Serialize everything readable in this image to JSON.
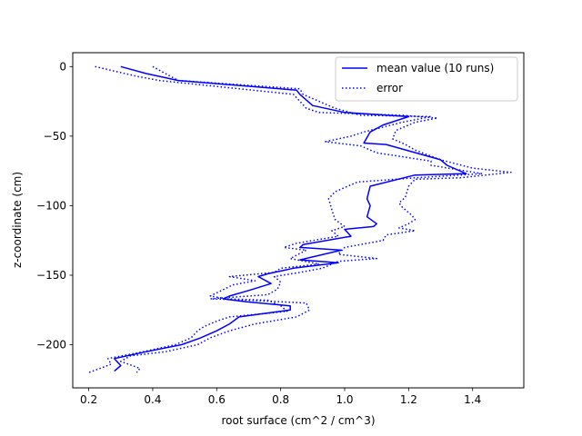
{
  "chart_data": {
    "type": "line",
    "xlabel": "root surface (cm^2 / cm^3)",
    "ylabel": "z-coordinate (cm)",
    "xlim": [
      0.15,
      1.56
    ],
    "ylim": [
      -231,
      10
    ],
    "xticks": [
      0.2,
      0.4,
      0.6,
      0.8,
      1.0,
      1.2,
      1.4
    ],
    "xtick_labels": [
      "0.2",
      "0.4",
      "0.6",
      "0.8",
      "1.0",
      "1.2",
      "1.4"
    ],
    "yticks": [
      0,
      -50,
      -100,
      -150,
      -200
    ],
    "ytick_labels": [
      "0",
      "−50",
      "−100",
      "−150",
      "−200"
    ],
    "grid": false,
    "legend_position": "top-right",
    "series": [
      {
        "name": "mean value (10 runs)",
        "style": "solid",
        "color": "#0000ff",
        "points": [
          [
            0.3,
            0
          ],
          [
            0.38,
            -5
          ],
          [
            0.48,
            -10
          ],
          [
            0.85,
            -17
          ],
          [
            0.86,
            -20
          ],
          [
            0.9,
            -28
          ],
          [
            1.0,
            -33
          ],
          [
            1.2,
            -36
          ],
          [
            1.12,
            -42
          ],
          [
            1.08,
            -47
          ],
          [
            1.06,
            -55
          ],
          [
            1.13,
            -56
          ],
          [
            1.3,
            -67
          ],
          [
            1.32,
            -71
          ],
          [
            1.38,
            -77
          ],
          [
            1.22,
            -78
          ],
          [
            1.08,
            -86
          ],
          [
            1.07,
            -95
          ],
          [
            1.08,
            -100
          ],
          [
            1.07,
            -108
          ],
          [
            1.1,
            -113
          ],
          [
            1.09,
            -115
          ],
          [
            1.0,
            -117
          ],
          [
            1.02,
            -122
          ],
          [
            0.87,
            -128
          ],
          [
            0.86,
            -130
          ],
          [
            0.99,
            -132
          ],
          [
            0.86,
            -139
          ],
          [
            0.98,
            -141
          ],
          [
            0.84,
            -145
          ],
          [
            0.8,
            -147
          ],
          [
            0.76,
            -149
          ],
          [
            0.73,
            -151
          ],
          [
            0.77,
            -156
          ],
          [
            0.7,
            -161
          ],
          [
            0.64,
            -165
          ],
          [
            0.62,
            -167
          ],
          [
            0.69,
            -169
          ],
          [
            0.83,
            -172
          ],
          [
            0.83,
            -175
          ],
          [
            0.67,
            -180
          ],
          [
            0.64,
            -185
          ],
          [
            0.6,
            -190
          ],
          [
            0.55,
            -195
          ],
          [
            0.49,
            -200
          ],
          [
            0.38,
            -205
          ],
          [
            0.28,
            -210
          ],
          [
            0.3,
            -215
          ],
          [
            0.28,
            -219
          ]
        ]
      },
      {
        "name": "error",
        "style": "dotted",
        "color": "#0000ff",
        "points": [
          [
            0.22,
            0
          ],
          [
            0.35,
            -7
          ],
          [
            0.42,
            -10
          ],
          [
            0.84,
            -20
          ],
          [
            0.86,
            -25
          ],
          [
            0.88,
            -30
          ],
          [
            0.92,
            -33
          ],
          [
            1.18,
            -35
          ],
          [
            1.29,
            -37
          ],
          [
            1.22,
            -40
          ],
          [
            1.16,
            -46
          ],
          [
            1.15,
            -52
          ],
          [
            1.19,
            -56
          ],
          [
            1.22,
            -60
          ],
          [
            1.3,
            -67
          ],
          [
            1.4,
            -73
          ],
          [
            1.52,
            -76
          ],
          [
            1.36,
            -80
          ],
          [
            1.22,
            -81
          ],
          [
            1.2,
            -86
          ],
          [
            1.19,
            -94
          ],
          [
            1.17,
            -98
          ],
          [
            1.18,
            -101
          ],
          [
            1.21,
            -107
          ],
          [
            1.22,
            -110
          ],
          [
            1.2,
            -113
          ],
          [
            1.17,
            -116
          ],
          [
            1.22,
            -118
          ],
          [
            1.13,
            -121
          ],
          [
            1.12,
            -125
          ],
          [
            1.0,
            -130
          ],
          [
            0.98,
            -135
          ],
          [
            1.1,
            -138
          ],
          [
            0.98,
            -140
          ],
          [
            0.93,
            -145
          ],
          [
            0.86,
            -148
          ],
          [
            0.78,
            -151
          ],
          [
            0.8,
            -155
          ],
          [
            0.79,
            -160
          ],
          [
            0.76,
            -164
          ],
          [
            0.58,
            -167
          ],
          [
            0.7,
            -168
          ],
          [
            0.88,
            -170
          ],
          [
            0.89,
            -175
          ],
          [
            0.85,
            -180
          ],
          [
            0.72,
            -185
          ],
          [
            0.64,
            -190
          ],
          [
            0.58,
            -195
          ],
          [
            0.54,
            -200
          ],
          [
            0.44,
            -205
          ],
          [
            0.33,
            -208
          ],
          [
            0.3,
            -212
          ],
          [
            0.36,
            -217
          ],
          [
            0.35,
            -220
          ]
        ]
      },
      {
        "style": "dotted",
        "color": "#0000ff",
        "points": [
          [
            0.4,
            0
          ],
          [
            0.44,
            -5
          ],
          [
            0.48,
            -10
          ],
          [
            0.86,
            -16
          ],
          [
            0.87,
            -20
          ],
          [
            0.92,
            -25
          ],
          [
            0.97,
            -30
          ],
          [
            1.05,
            -35
          ],
          [
            1.27,
            -36
          ],
          [
            1.18,
            -40
          ],
          [
            1.06,
            -47
          ],
          [
            1.02,
            -50
          ],
          [
            0.94,
            -54
          ],
          [
            1.05,
            -57
          ],
          [
            1.1,
            -62
          ],
          [
            1.27,
            -68
          ],
          [
            1.27,
            -71
          ],
          [
            1.43,
            -77
          ],
          [
            1.22,
            -80
          ],
          [
            1.04,
            -83
          ],
          [
            0.97,
            -90
          ],
          [
            0.95,
            -95
          ],
          [
            0.96,
            -103
          ],
          [
            0.97,
            -110
          ],
          [
            1.0,
            -115
          ],
          [
            0.96,
            -118
          ],
          [
            0.98,
            -122
          ],
          [
            0.85,
            -127
          ],
          [
            0.81,
            -130
          ],
          [
            0.88,
            -132
          ],
          [
            0.83,
            -138
          ],
          [
            0.92,
            -142
          ],
          [
            0.8,
            -145
          ],
          [
            0.78,
            -148
          ],
          [
            0.64,
            -151
          ],
          [
            0.72,
            -154
          ],
          [
            0.65,
            -157
          ],
          [
            0.58,
            -165
          ],
          [
            0.63,
            -167
          ],
          [
            0.76,
            -168
          ],
          [
            0.8,
            -172
          ],
          [
            0.82,
            -176
          ],
          [
            0.64,
            -180
          ],
          [
            0.6,
            -183
          ],
          [
            0.56,
            -187
          ],
          [
            0.54,
            -190
          ],
          [
            0.52,
            -195
          ],
          [
            0.47,
            -200
          ],
          [
            0.37,
            -205
          ],
          [
            0.26,
            -210
          ],
          [
            0.27,
            -214
          ],
          [
            0.2,
            -220
          ]
        ]
      }
    ]
  }
}
